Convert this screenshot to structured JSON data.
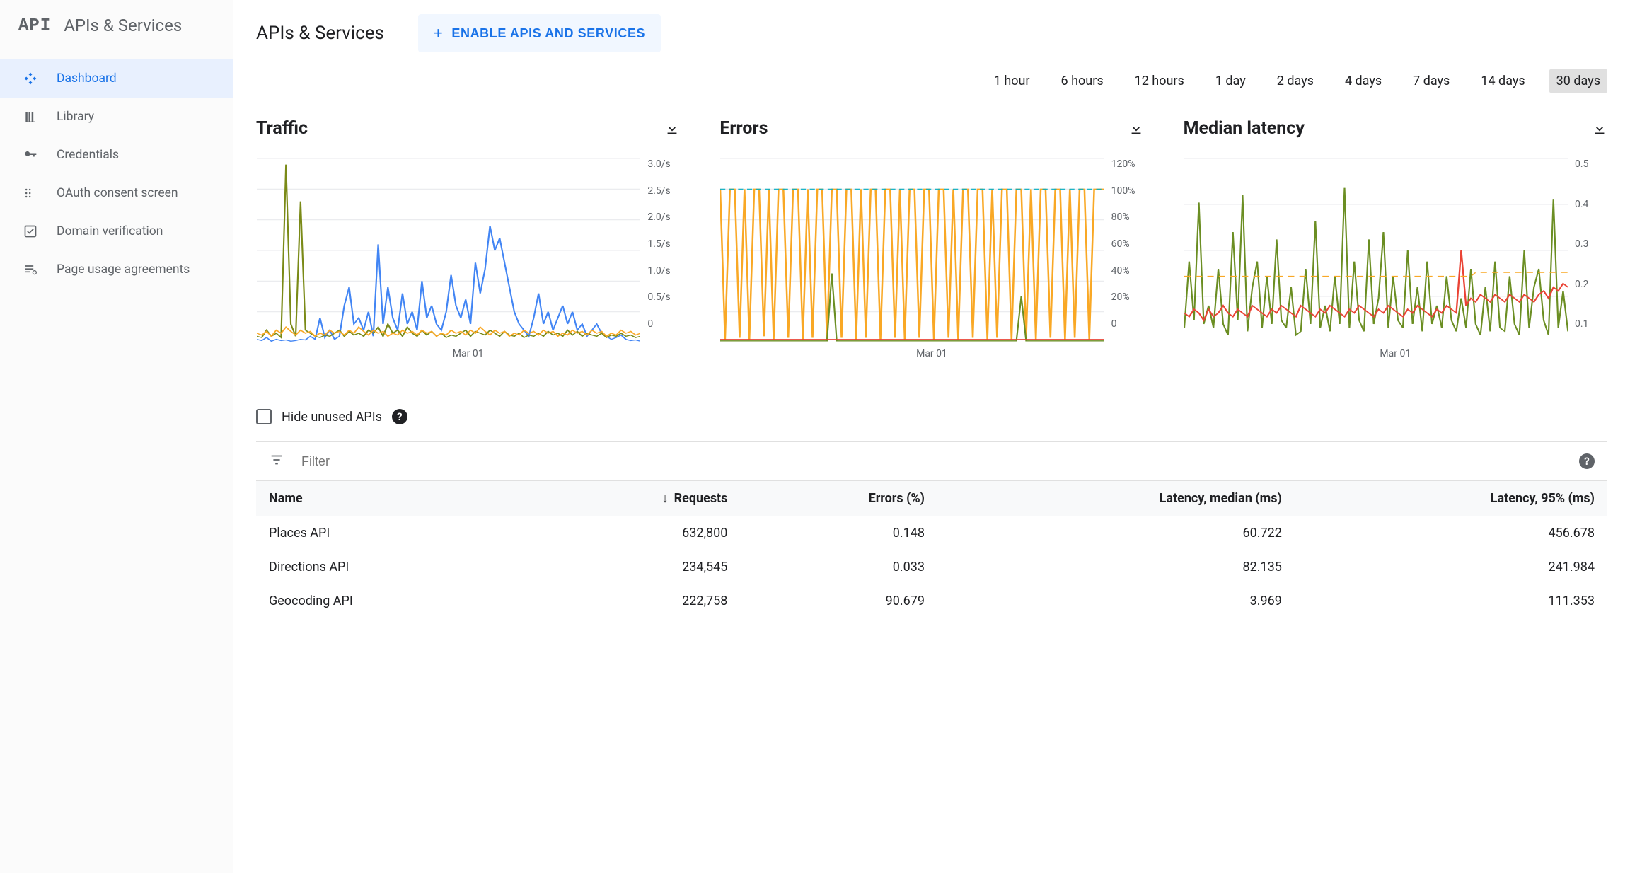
{
  "sidebar": {
    "header_glyph": "API",
    "header_label": "APIs & Services",
    "items": [
      {
        "label": "Dashboard",
        "icon": "diamond-icon",
        "active": true
      },
      {
        "label": "Library",
        "icon": "library-icon",
        "active": false
      },
      {
        "label": "Credentials",
        "icon": "key-icon",
        "active": false
      },
      {
        "label": "OAuth consent screen",
        "icon": "consent-icon",
        "active": false
      },
      {
        "label": "Domain verification",
        "icon": "check-square-icon",
        "active": false
      },
      {
        "label": "Page usage agreements",
        "icon": "list-gear-icon",
        "active": false
      }
    ]
  },
  "header": {
    "title": "APIs & Services",
    "enable_btn": "ENABLE APIS AND SERVICES"
  },
  "time_ranges": {
    "options": [
      "1 hour",
      "6 hours",
      "12 hours",
      "1 day",
      "2 days",
      "4 days",
      "7 days",
      "14 days",
      "30 days"
    ],
    "selected_index": 8
  },
  "charts": {
    "xaxis_label": "Mar 01",
    "grid_color": "#e8eaed",
    "background_color": "#ffffff",
    "label_color": "#5f6368",
    "label_fontsize": 14,
    "traffic": {
      "title": "Traffic",
      "type": "line",
      "yticks": [
        "3.0/s",
        "2.5/s",
        "2.0/s",
        "1.5/s",
        "1.0/s",
        "0.5/s",
        "0"
      ],
      "ylim": [
        0,
        3.0
      ],
      "series": [
        {
          "name": "series-blue",
          "color": "#4285f4",
          "stroke_width": 1.2,
          "values": [
            0.05,
            0.03,
            0.08,
            0.02,
            0.05,
            0.03,
            0.04,
            0.02,
            0.03,
            0.05,
            0.04,
            0.1,
            0.05,
            0.4,
            0.08,
            0.2,
            0.05,
            0.1,
            0.6,
            0.9,
            0.3,
            0.4,
            0.2,
            0.5,
            0.1,
            1.6,
            0.3,
            0.9,
            0.4,
            0.2,
            0.8,
            0.3,
            0.5,
            0.2,
            1.0,
            0.4,
            0.6,
            0.3,
            0.2,
            0.5,
            1.1,
            0.6,
            0.4,
            0.7,
            0.3,
            1.3,
            0.8,
            1.2,
            1.9,
            1.5,
            1.7,
            1.3,
            0.9,
            0.5,
            0.3,
            0.2,
            0.1,
            0.4,
            0.8,
            0.3,
            0.5,
            0.2,
            0.4,
            0.6,
            0.3,
            0.5,
            0.2,
            0.3,
            0.1,
            0.2,
            0.3,
            0.15,
            0.1,
            0.05,
            0.08,
            0.12,
            0.05,
            0.03,
            0.04,
            0.02
          ]
        },
        {
          "name": "series-olive",
          "color": "#7a8a17",
          "stroke_width": 1.2,
          "values": [
            0.1,
            0.08,
            0.2,
            0.1,
            0.15,
            0.08,
            2.9,
            0.3,
            0.1,
            2.3,
            0.2,
            0.15,
            0.1,
            0.08,
            0.12,
            0.1,
            0.15,
            0.2,
            0.1,
            0.18,
            0.12,
            0.15,
            0.1,
            0.2,
            0.15,
            0.25,
            0.1,
            0.3,
            0.15,
            0.2,
            0.1,
            0.25,
            0.15,
            0.1,
            0.2,
            0.12,
            0.18,
            0.1,
            0.15,
            0.08,
            0.12,
            0.1,
            0.15,
            0.2,
            0.1,
            0.18,
            0.15,
            0.12,
            0.2,
            0.15,
            0.1,
            0.18,
            0.12,
            0.1,
            0.15,
            0.08,
            0.12,
            0.1,
            0.15,
            0.1,
            0.18,
            0.12,
            0.15,
            0.1,
            0.2,
            0.12,
            0.18,
            0.1,
            0.15,
            0.12,
            0.1,
            0.15,
            0.08,
            0.12,
            0.1,
            0.15,
            0.1,
            0.12,
            0.08,
            0.1
          ]
        },
        {
          "name": "series-orange",
          "color": "#f9a825",
          "stroke_width": 1.2,
          "values": [
            0.15,
            0.12,
            0.18,
            0.1,
            0.2,
            0.15,
            0.25,
            0.18,
            0.12,
            0.2,
            0.15,
            0.18,
            0.1,
            0.15,
            0.12,
            0.2,
            0.15,
            0.18,
            0.12,
            0.2,
            0.15,
            0.25,
            0.18,
            0.12,
            0.2,
            0.15,
            0.18,
            0.1,
            0.15,
            0.12,
            0.2,
            0.15,
            0.18,
            0.12,
            0.2,
            0.15,
            0.18,
            0.1,
            0.15,
            0.12,
            0.2,
            0.15,
            0.18,
            0.12,
            0.2,
            0.15,
            0.25,
            0.18,
            0.12,
            0.2,
            0.15,
            0.18,
            0.1,
            0.15,
            0.12,
            0.2,
            0.15,
            0.18,
            0.12,
            0.2,
            0.15,
            0.18,
            0.1,
            0.15,
            0.12,
            0.2,
            0.15,
            0.18,
            0.12,
            0.2,
            0.15,
            0.18,
            0.1,
            0.15,
            0.12,
            0.2,
            0.15,
            0.18,
            0.12,
            0.15
          ]
        }
      ]
    },
    "errors": {
      "title": "Errors",
      "type": "line",
      "yticks": [
        "120%",
        "100%",
        "80%",
        "60%",
        "40%",
        "20%",
        "0"
      ],
      "ylim": [
        0,
        120
      ],
      "series": [
        {
          "name": "series-orange",
          "color": "#f9a825",
          "stroke_width": 1.4,
          "values": [
            100,
            2,
            100,
            100,
            3,
            100,
            2,
            100,
            100,
            4,
            100,
            2,
            100,
            100,
            3,
            100,
            100,
            2,
            100,
            3,
            100,
            100,
            2,
            100,
            100,
            3,
            100,
            100,
            2,
            100,
            3,
            100,
            100,
            2,
            100,
            100,
            3,
            100,
            2,
            100,
            100,
            3,
            100,
            100,
            2,
            100,
            100,
            3,
            100,
            2,
            100,
            100,
            3,
            100,
            100,
            2,
            100,
            3,
            100,
            100,
            2,
            100,
            100,
            3,
            100,
            2,
            100,
            100,
            3,
            100,
            100,
            2,
            100,
            3,
            100,
            100,
            2,
            100,
            100,
            100
          ]
        },
        {
          "name": "series-green",
          "color": "#6b8e23",
          "stroke_width": 1.2,
          "values": [
            1,
            1,
            1,
            1,
            1,
            1,
            1,
            1,
            1,
            1,
            1,
            1,
            1,
            1,
            1,
            1,
            1,
            1,
            1,
            1,
            1,
            1,
            1,
            45,
            1,
            1,
            1,
            1,
            1,
            1,
            1,
            1,
            1,
            1,
            1,
            1,
            1,
            1,
            1,
            1,
            1,
            1,
            1,
            1,
            1,
            1,
            1,
            1,
            1,
            1,
            1,
            1,
            1,
            1,
            1,
            1,
            1,
            1,
            1,
            1,
            1,
            1,
            30,
            1,
            1,
            1,
            1,
            1,
            1,
            1,
            1,
            1,
            1,
            1,
            1,
            1,
            1,
            1,
            1,
            1
          ]
        },
        {
          "name": "series-red",
          "color": "#ea4335",
          "stroke_width": 1.0,
          "values": [
            2,
            2,
            2,
            2,
            2,
            2,
            2,
            2,
            2,
            2,
            2,
            2,
            2,
            2,
            2,
            2,
            2,
            2,
            2,
            2,
            2,
            2,
            2,
            2,
            2,
            2,
            2,
            2,
            2,
            2,
            2,
            2,
            2,
            2,
            2,
            2,
            2,
            2,
            2,
            2,
            2,
            2,
            2,
            2,
            2,
            2,
            2,
            2,
            2,
            2,
            2,
            2,
            2,
            2,
            2,
            2,
            2,
            2,
            2,
            2,
            2,
            2,
            2,
            2,
            2,
            2,
            2,
            2,
            2,
            2,
            2,
            2,
            2,
            2,
            2,
            2,
            2,
            2,
            2,
            2
          ]
        },
        {
          "name": "series-teal-dash",
          "color": "#00acc1",
          "stroke_width": 1.0,
          "dash": "4 3",
          "values": [
            100,
            100,
            100,
            100,
            100,
            100,
            100,
            100,
            100,
            100,
            100,
            100,
            100,
            100,
            100,
            100,
            100,
            100,
            100,
            100,
            100,
            100,
            100,
            100,
            100,
            100,
            100,
            100,
            100,
            100,
            100,
            100,
            100,
            100,
            100,
            100,
            100,
            100,
            100,
            100,
            100,
            100,
            100,
            100,
            100,
            100,
            100,
            100,
            100,
            100,
            100,
            100,
            100,
            100,
            100,
            100,
            100,
            100,
            100,
            100,
            100,
            100,
            100,
            100,
            100,
            100,
            100,
            100,
            100,
            100,
            100,
            100,
            100,
            100,
            100,
            100,
            100,
            100,
            100,
            100
          ]
        }
      ]
    },
    "latency": {
      "title": "Median latency",
      "type": "line",
      "yticks": [
        "0.5",
        "0.4",
        "0.3",
        "0.2",
        "0.1"
      ],
      "ylim": [
        0,
        0.5
      ],
      "series": [
        {
          "name": "series-green",
          "color": "#6b8e23",
          "stroke_width": 1.2,
          "values": [
            0.04,
            0.22,
            0.06,
            0.38,
            0.05,
            0.1,
            0.04,
            0.2,
            0.05,
            0.02,
            0.3,
            0.06,
            0.4,
            0.03,
            0.15,
            0.22,
            0.04,
            0.18,
            0.05,
            0.28,
            0.06,
            0.04,
            0.15,
            0.02,
            0.03,
            0.2,
            0.05,
            0.33,
            0.04,
            0.1,
            0.03,
            0.18,
            0.05,
            0.42,
            0.04,
            0.22,
            0.06,
            0.03,
            0.28,
            0.05,
            0.12,
            0.3,
            0.04,
            0.18,
            0.06,
            0.04,
            0.25,
            0.05,
            0.15,
            0.03,
            0.22,
            0.05,
            0.1,
            0.04,
            0.18,
            0.06,
            0.03,
            0.12,
            0.04,
            0.2,
            0.05,
            0.02,
            0.15,
            0.03,
            0.22,
            0.04,
            0.03,
            0.18,
            0.05,
            0.02,
            0.25,
            0.04,
            0.15,
            0.2,
            0.06,
            0.02,
            0.39,
            0.04,
            0.14,
            0.03
          ]
        },
        {
          "name": "series-red",
          "color": "#ea4335",
          "stroke_width": 1.3,
          "values": [
            0.08,
            0.07,
            0.09,
            0.08,
            0.06,
            0.09,
            0.07,
            0.08,
            0.1,
            0.08,
            0.07,
            0.09,
            0.08,
            0.07,
            0.1,
            0.09,
            0.08,
            0.07,
            0.09,
            0.08,
            0.1,
            0.09,
            0.08,
            0.07,
            0.1,
            0.09,
            0.08,
            0.07,
            0.09,
            0.08,
            0.1,
            0.09,
            0.08,
            0.07,
            0.09,
            0.08,
            0.1,
            0.09,
            0.08,
            0.07,
            0.09,
            0.08,
            0.1,
            0.09,
            0.08,
            0.07,
            0.09,
            0.08,
            0.1,
            0.09,
            0.08,
            0.07,
            0.09,
            0.08,
            0.1,
            0.09,
            0.08,
            0.25,
            0.1,
            0.12,
            0.11,
            0.13,
            0.12,
            0.11,
            0.13,
            0.12,
            0.11,
            0.13,
            0.12,
            0.11,
            0.13,
            0.12,
            0.11,
            0.13,
            0.14,
            0.12,
            0.15,
            0.14,
            0.16,
            0.15
          ]
        },
        {
          "name": "series-orange-dash",
          "color": "#f9a825",
          "stroke_width": 1.0,
          "dash": "5 4",
          "values": [
            0.18,
            0.18,
            0.18,
            0.18,
            0.18,
            0.18,
            0.18,
            0.18,
            0.18,
            0.18,
            0.18,
            0.18,
            0.18,
            0.18,
            0.18,
            0.18,
            0.18,
            0.18,
            0.18,
            0.18,
            0.18,
            0.18,
            0.18,
            0.18,
            0.18,
            0.18,
            0.18,
            0.18,
            0.18,
            0.18,
            0.18,
            0.18,
            0.18,
            0.18,
            0.18,
            0.18,
            0.18,
            0.18,
            0.18,
            0.18,
            0.18,
            0.18,
            0.18,
            0.18,
            0.18,
            0.18,
            0.18,
            0.18,
            0.18,
            0.18,
            0.18,
            0.18,
            0.18,
            0.18,
            0.18,
            0.18,
            0.18,
            0.18,
            0.18,
            0.18,
            0.19,
            0.19,
            0.19,
            0.19,
            0.19,
            0.19,
            0.19,
            0.19,
            0.19,
            0.19,
            0.19,
            0.19,
            0.19,
            0.19,
            0.19,
            0.19,
            0.19,
            0.19,
            0.19,
            0.19
          ]
        }
      ]
    }
  },
  "table_section": {
    "hide_label": "Hide unused APIs",
    "filter_placeholder": "Filter",
    "columns": [
      "Name",
      "Requests",
      "Errors (%)",
      "Latency, median (ms)",
      "Latency, 95% (ms)"
    ],
    "sorted_col_index": 1,
    "rows": [
      [
        "Places API",
        "632,800",
        "0.148",
        "60.722",
        "456.678"
      ],
      [
        "Directions API",
        "234,545",
        "0.033",
        "82.135",
        "241.984"
      ],
      [
        "Geocoding API",
        "222,758",
        "90.679",
        "3.969",
        "111.353"
      ]
    ]
  }
}
